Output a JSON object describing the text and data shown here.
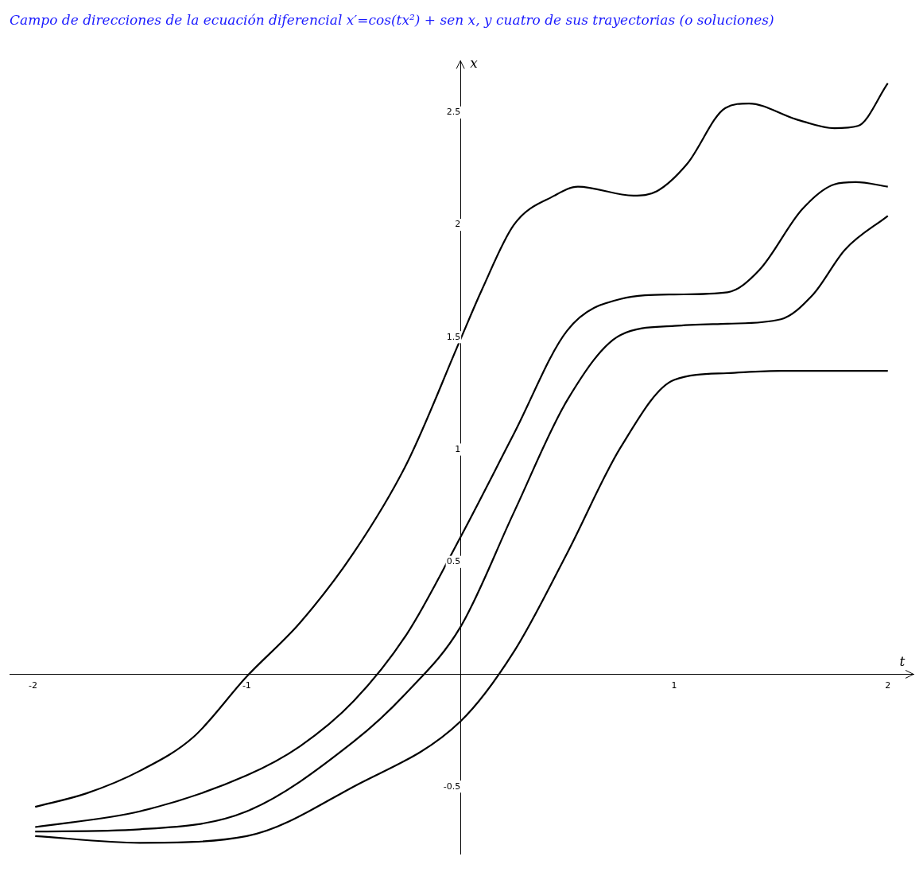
{
  "chart_data": {
    "type": "line",
    "title": "Campo de direcciones de la ecuación diferencial x′=cos(tx²) + sen x, y cuatro de sus trayectorias (o soluciones)",
    "xlabel": "t",
    "ylabel": "x",
    "xlim": [
      -2.11,
      2.12
    ],
    "ylim": [
      -0.8,
      2.73
    ],
    "xticks": [
      -2,
      {
        "value": -1,
        "label": "-1"
      },
      1,
      2
    ],
    "yticks": [
      -0.5,
      0.5,
      1,
      1.5,
      2,
      2.5
    ],
    "grid": false,
    "legend": false,
    "marker": "none",
    "line_style": "solid",
    "series": [
      {
        "color": "#000000",
        "x": [
          -1.99,
          -1.75,
          -1.5,
          -1.25,
          -1,
          -0.75,
          -0.5,
          -0.25,
          0,
          0.1,
          0.25,
          0.44,
          0.55,
          0.81,
          0.92,
          1.06,
          1.24,
          1.35,
          1.57,
          1.75,
          1.86,
          2
        ],
        "values": [
          -0.59,
          -0.53,
          -0.43,
          -0.28,
          -0.01,
          0.23,
          0.54,
          0.94,
          1.49,
          1.71,
          2,
          2.13,
          2.17,
          2.13,
          2.15,
          2.27,
          2.52,
          2.54,
          2.47,
          2.43,
          2.44,
          2.63
        ]
      },
      {
        "color": "#000000",
        "x": [
          -1.99,
          -1.5,
          -1,
          -0.75,
          -0.5,
          -0.25,
          0,
          0.25,
          0.5,
          0.75,
          1,
          1.25,
          1.4,
          1.6,
          1.75,
          1.85,
          2
        ],
        "values": [
          -0.68,
          -0.61,
          -0.45,
          -0.32,
          -0.12,
          0.18,
          0.61,
          1.07,
          1.53,
          1.67,
          1.69,
          1.7,
          1.8,
          2.07,
          2.18,
          2.19,
          2.17
        ]
      },
      {
        "color": "#000000",
        "x": [
          -1.99,
          -1.5,
          -1,
          -0.5,
          -0.25,
          0,
          0.25,
          0.5,
          0.75,
          1,
          1.25,
          1.5,
          1.65,
          1.8,
          2
        ],
        "values": [
          -0.7,
          -0.69,
          -0.61,
          -0.3,
          -0.08,
          0.21,
          0.72,
          1.22,
          1.51,
          1.55,
          1.56,
          1.58,
          1.69,
          1.89,
          2.04
        ]
      },
      {
        "color": "#000000",
        "x": [
          -1.99,
          -1.5,
          -1,
          -0.5,
          0,
          0.25,
          0.5,
          0.75,
          1,
          1.25,
          1.5,
          2
        ],
        "values": [
          -0.72,
          -0.75,
          -0.72,
          -0.5,
          -0.21,
          0.1,
          0.54,
          1.01,
          1.31,
          1.34,
          1.35,
          1.35
        ]
      }
    ]
  }
}
